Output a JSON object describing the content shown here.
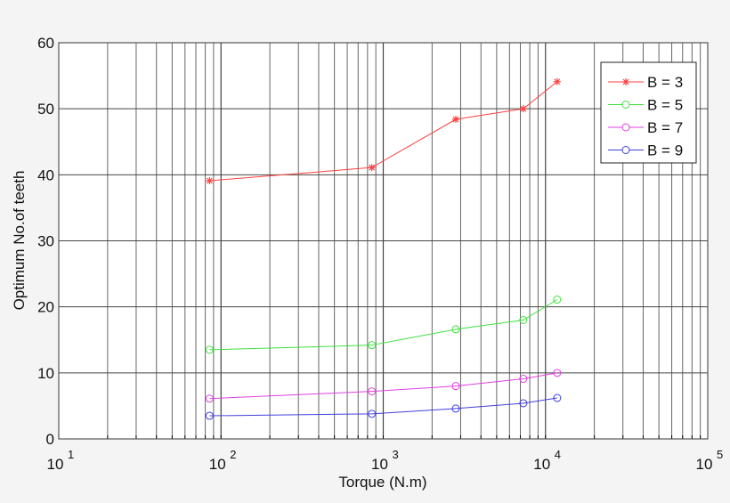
{
  "chart_data": {
    "type": "line",
    "title": "",
    "xlabel": "Torque (N.m)",
    "ylabel": "Optimum No.of teeth",
    "xscale": "log",
    "xlim": [
      10,
      100000
    ],
    "ylim": [
      0,
      60
    ],
    "grid": true,
    "legend_position": "upper right",
    "x_ticks": [
      {
        "base": "10",
        "exp": "1",
        "value": 10
      },
      {
        "base": "10",
        "exp": "2",
        "value": 100
      },
      {
        "base": "10",
        "exp": "3",
        "value": 1000
      },
      {
        "base": "10",
        "exp": "4",
        "value": 10000
      },
      {
        "base": "10",
        "exp": "5",
        "value": 100000
      }
    ],
    "y_ticks": [
      "0",
      "10",
      "20",
      "30",
      "40",
      "50",
      "60"
    ],
    "x": [
      85,
      850,
      2800,
      7300,
      11800
    ],
    "series": [
      {
        "name": "B = 3",
        "color": "#ff4040",
        "marker": "star",
        "values": [
          39.1,
          41.1,
          48.4,
          50.0,
          54.1
        ]
      },
      {
        "name": "B = 5",
        "color": "#40e040",
        "marker": "circle",
        "values": [
          13.5,
          14.2,
          16.6,
          18.0,
          21.1
        ]
      },
      {
        "name": "B = 7",
        "color": "#e040e0",
        "marker": "circle",
        "values": [
          6.1,
          7.2,
          8.0,
          9.1,
          10.0
        ]
      },
      {
        "name": "B = 9",
        "color": "#4040e0",
        "marker": "circle",
        "values": [
          3.5,
          3.8,
          4.6,
          5.4,
          6.2
        ]
      }
    ]
  }
}
